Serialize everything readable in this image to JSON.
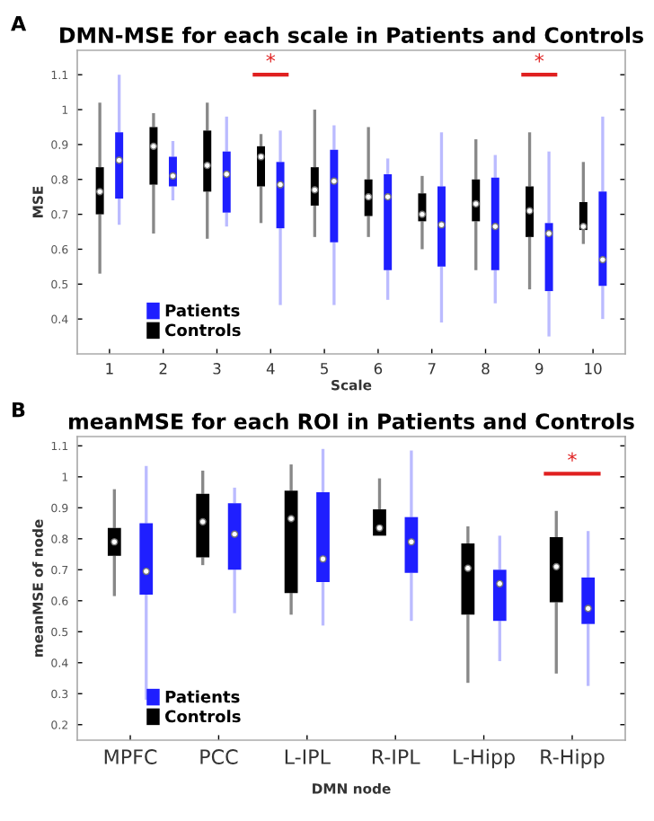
{
  "chart_data": [
    {
      "type": "box",
      "title": "DMN-MSE for each scale in Patients and Controls",
      "xlabel": "Scale",
      "ylabel": "MSE",
      "categories": [
        "1",
        "2",
        "3",
        "4",
        "5",
        "6",
        "7",
        "8",
        "9",
        "10"
      ],
      "ylim": [
        0.3,
        1.17
      ],
      "yticks": [
        0.4,
        0.5,
        0.6,
        0.7,
        0.8,
        0.9,
        1,
        1.1
      ],
      "legend": "bottom left",
      "grid": false,
      "series": [
        {
          "name": "Controls",
          "color": "#000000",
          "boxes": [
            {
              "low": 0.53,
              "q1": 0.7,
              "median": 0.765,
              "q3": 0.835,
              "high": 1.02
            },
            {
              "low": 0.645,
              "q1": 0.785,
              "median": 0.895,
              "q3": 0.95,
              "high": 0.99
            },
            {
              "low": 0.63,
              "q1": 0.765,
              "median": 0.84,
              "q3": 0.94,
              "high": 1.02
            },
            {
              "low": 0.675,
              "q1": 0.78,
              "median": 0.865,
              "q3": 0.895,
              "high": 0.93
            },
            {
              "low": 0.635,
              "q1": 0.725,
              "median": 0.77,
              "q3": 0.835,
              "high": 1.0
            },
            {
              "low": 0.635,
              "q1": 0.695,
              "median": 0.75,
              "q3": 0.8,
              "high": 0.95
            },
            {
              "low": 0.6,
              "q1": 0.68,
              "median": 0.7,
              "q3": 0.76,
              "high": 0.81
            },
            {
              "low": 0.54,
              "q1": 0.68,
              "median": 0.73,
              "q3": 0.8,
              "high": 0.915
            },
            {
              "low": 0.485,
              "q1": 0.635,
              "median": 0.71,
              "q3": 0.78,
              "high": 0.935
            },
            {
              "low": 0.615,
              "q1": 0.655,
              "median": 0.665,
              "q3": 0.735,
              "high": 0.85
            }
          ]
        },
        {
          "name": "Patients",
          "color": "#1f1fff",
          "boxes": [
            {
              "low": 0.67,
              "q1": 0.745,
              "median": 0.855,
              "q3": 0.935,
              "high": 1.1
            },
            {
              "low": 0.74,
              "q1": 0.78,
              "median": 0.81,
              "q3": 0.865,
              "high": 0.91
            },
            {
              "low": 0.665,
              "q1": 0.705,
              "median": 0.815,
              "q3": 0.88,
              "high": 0.98
            },
            {
              "low": 0.44,
              "q1": 0.66,
              "median": 0.785,
              "q3": 0.85,
              "high": 0.94
            },
            {
              "low": 0.44,
              "q1": 0.62,
              "median": 0.795,
              "q3": 0.885,
              "high": 0.955
            },
            {
              "low": 0.455,
              "q1": 0.54,
              "median": 0.75,
              "q3": 0.815,
              "high": 0.86
            },
            {
              "low": 0.39,
              "q1": 0.55,
              "median": 0.67,
              "q3": 0.78,
              "high": 0.935
            },
            {
              "low": 0.445,
              "q1": 0.54,
              "median": 0.665,
              "q3": 0.805,
              "high": 0.87
            },
            {
              "low": 0.35,
              "q1": 0.48,
              "median": 0.645,
              "q3": 0.675,
              "high": 0.88
            },
            {
              "low": 0.4,
              "q1": 0.495,
              "median": 0.57,
              "q3": 0.765,
              "high": 0.98
            }
          ]
        }
      ],
      "annotations": [
        "A",
        "*",
        "*"
      ]
    },
    {
      "type": "box",
      "title": "meanMSE for each ROI in Patients and Controls",
      "xlabel": "DMN node",
      "ylabel": "meanMSE of node",
      "categories": [
        "MPFC",
        "PCC",
        "L-IPL",
        "R-IPL",
        "L-Hipp",
        "R-Hipp"
      ],
      "ylim": [
        0.15,
        1.13
      ],
      "yticks": [
        0.2,
        0.3,
        0.4,
        0.5,
        0.6,
        0.7,
        0.8,
        0.9,
        1,
        1.1
      ],
      "legend": "bottom left",
      "grid": false,
      "series": [
        {
          "name": "Controls",
          "color": "#000000",
          "boxes": [
            {
              "low": 0.615,
              "q1": 0.745,
              "median": 0.79,
              "q3": 0.835,
              "high": 0.96
            },
            {
              "low": 0.715,
              "q1": 0.74,
              "median": 0.855,
              "q3": 0.945,
              "high": 1.02
            },
            {
              "low": 0.555,
              "q1": 0.625,
              "median": 0.865,
              "q3": 0.955,
              "high": 1.04
            },
            {
              "low": 0.81,
              "q1": 0.81,
              "median": 0.835,
              "q3": 0.895,
              "high": 0.995
            },
            {
              "low": 0.335,
              "q1": 0.555,
              "median": 0.705,
              "q3": 0.785,
              "high": 0.84
            },
            {
              "low": 0.365,
              "q1": 0.595,
              "median": 0.71,
              "q3": 0.805,
              "high": 0.89
            }
          ]
        },
        {
          "name": "Patients",
          "color": "#1f1fff",
          "boxes": [
            {
              "low": 0.28,
              "q1": 0.62,
              "median": 0.695,
              "q3": 0.85,
              "high": 1.035
            },
            {
              "low": 0.56,
              "q1": 0.7,
              "median": 0.815,
              "q3": 0.915,
              "high": 0.965
            },
            {
              "low": 0.52,
              "q1": 0.66,
              "median": 0.735,
              "q3": 0.95,
              "high": 1.09
            },
            {
              "low": 0.535,
              "q1": 0.69,
              "median": 0.79,
              "q3": 0.87,
              "high": 1.085
            },
            {
              "low": 0.405,
              "q1": 0.535,
              "median": 0.655,
              "q3": 0.7,
              "high": 0.81
            },
            {
              "low": 0.325,
              "q1": 0.525,
              "median": 0.575,
              "q3": 0.675,
              "high": 0.825
            }
          ]
        }
      ],
      "annotations": [
        "B",
        "*"
      ]
    }
  ]
}
